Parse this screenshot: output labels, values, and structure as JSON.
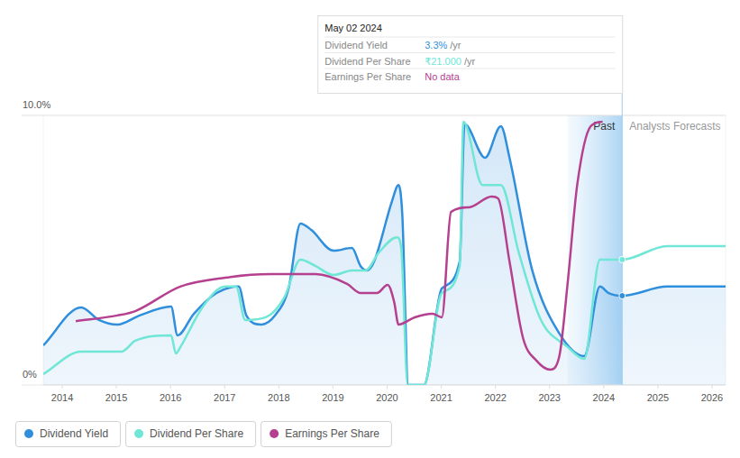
{
  "chart_data": {
    "type": "line",
    "xlim": [
      2013.65,
      2026.25
    ],
    "xticks": [
      2014,
      2015,
      2016,
      2017,
      2018,
      2019,
      2020,
      2021,
      2022,
      2023,
      2024,
      2025,
      2026
    ],
    "ylim": [
      0,
      10
    ],
    "yticks": [
      {
        "value": 0,
        "label": "0%"
      },
      {
        "value": 10,
        "label": "10.0%"
      }
    ],
    "grid": true,
    "legend": "bottom",
    "regions": [
      {
        "label": "Past",
        "x": [
          2023.33,
          2024.34
        ]
      },
      {
        "label": "Analysts Forecasts",
        "x": [
          2024.34,
          2026.25
        ]
      }
    ],
    "tooltip": {
      "title": "May 02 2024",
      "x": 2024.34,
      "rows": [
        {
          "label": "Dividend Yield",
          "value": "3.3%",
          "unit": "/yr"
        },
        {
          "label": "Dividend Per Share",
          "value": "₹21.000",
          "unit": "/yr"
        },
        {
          "label": "Earnings Per Share",
          "value": "No data"
        }
      ]
    },
    "series": [
      {
        "name": "Dividend Yield",
        "color": "#2f8fdc",
        "x": [
          2013.65,
          2014.35,
          2014.68,
          2015.02,
          2015.43,
          2016.01,
          2016.13,
          2016.43,
          2016.85,
          2017.26,
          2017.4,
          2017.68,
          2017.93,
          2018.18,
          2018.4,
          2018.6,
          2019.01,
          2019.35,
          2019.51,
          2019.63,
          2019.76,
          2020.09,
          2020.21,
          2020.28,
          2020.39,
          2020.68,
          2021.01,
          2021.34,
          2021.43,
          2021.81,
          2022.1,
          2022.26,
          2022.68,
          2023.18,
          2023.64,
          2023.93,
          2024.09,
          2024.34,
          2025.17,
          2026.25
        ],
        "values": [
          1.47,
          2.88,
          2.41,
          2.24,
          2.58,
          2.91,
          1.84,
          2.64,
          3.41,
          3.65,
          2.58,
          2.24,
          2.58,
          3.58,
          5.99,
          5.75,
          4.98,
          5.08,
          4.41,
          4.25,
          4.58,
          6.82,
          7.42,
          6.32,
          0,
          0,
          3.58,
          4.58,
          9.67,
          8.43,
          9.6,
          8.43,
          4.25,
          1.91,
          1.07,
          3.65,
          3.41,
          3.31,
          3.65,
          3.65
        ]
      },
      {
        "name": "Dividend Per Share",
        "color": "#6fe6d6",
        "x": [
          2013.65,
          2014.35,
          2015.1,
          2015.35,
          2016.01,
          2016.1,
          2016.18,
          2016.6,
          2017.01,
          2017.21,
          2017.38,
          2017.76,
          2018.1,
          2018.4,
          2018.68,
          2019.01,
          2019.35,
          2019.6,
          2019.85,
          2020.18,
          2020.26,
          2020.38,
          2020.68,
          2021.01,
          2021.34,
          2021.41,
          2021.76,
          2022.1,
          2022.43,
          2022.84,
          2023.34,
          2023.64,
          2023.93,
          2024.34,
          2025.17,
          2026.25
        ],
        "values": [
          0.4,
          1.24,
          1.24,
          1.64,
          1.84,
          1.17,
          1.4,
          2.91,
          3.65,
          3.65,
          2.41,
          2.51,
          3.24,
          4.65,
          4.41,
          4.08,
          4.25,
          4.25,
          4.92,
          5.48,
          5.08,
          0,
          0,
          3.41,
          4.41,
          9.77,
          7.42,
          7.42,
          4.92,
          2.41,
          1.4,
          0.97,
          4.65,
          4.65,
          5.15,
          5.15
        ]
      },
      {
        "name": "Earnings Per Share",
        "color": "#b5408f",
        "x": [
          2014.25,
          2015.02,
          2015.35,
          2016.18,
          2017.01,
          2017.85,
          2018.68,
          2019.26,
          2019.51,
          2019.81,
          2020.01,
          2020.13,
          2020.21,
          2020.51,
          2020.84,
          2021.01,
          2021.18,
          2021.51,
          2021.93,
          2022.05,
          2022.26,
          2022.51,
          2022.76,
          2023.01,
          2023.18,
          2023.34,
          2023.51,
          2023.76,
          2023.98
        ],
        "values": [
          2.37,
          2.58,
          2.74,
          3.65,
          3.98,
          4.11,
          4.11,
          3.75,
          3.41,
          3.41,
          3.71,
          3.08,
          2.24,
          2.51,
          2.64,
          2.51,
          6.42,
          6.59,
          6.99,
          6.92,
          4.58,
          1.74,
          0.9,
          0.57,
          1.07,
          3.91,
          7.42,
          9.6,
          9.77
        ]
      }
    ]
  }
}
